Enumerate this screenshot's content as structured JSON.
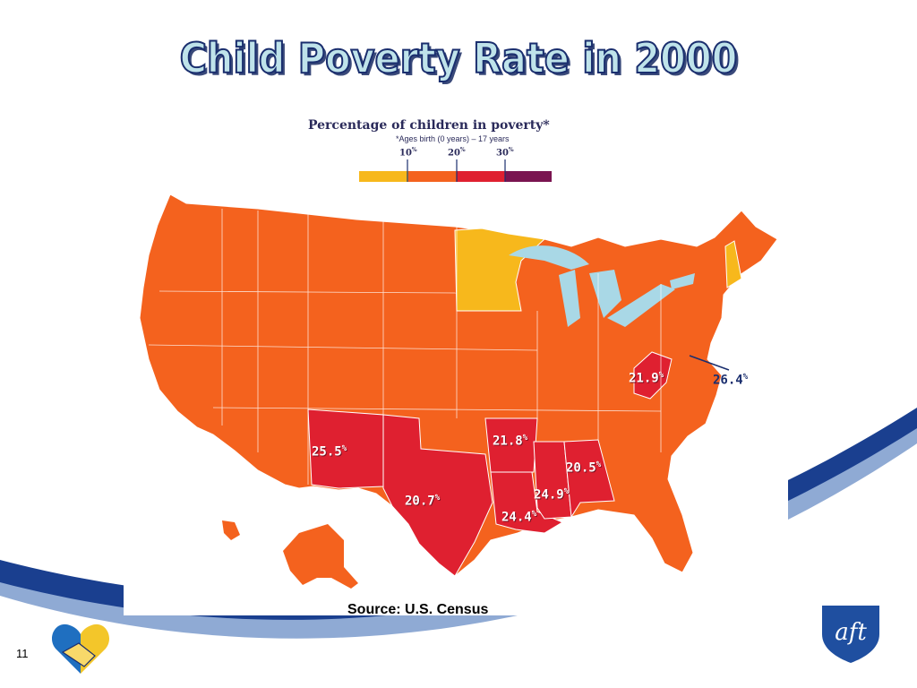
{
  "slide": {
    "title": "Child Poverty Rate in 2000",
    "source": "Source: U.S. Census",
    "page_number": "11"
  },
  "legend": {
    "title": "Percentage of children in poverty*",
    "subtitle": "*Ages birth (0 years) – 17 years",
    "ticks": [
      "10",
      "20",
      "30"
    ],
    "tick_unit": "%",
    "bins": [
      {
        "range": "<10%",
        "color": "#f7b81c"
      },
      {
        "range": "10–20%",
        "color": "#f4621e"
      },
      {
        "range": "20–30%",
        "color": "#df2030"
      },
      {
        "range": ">30%",
        "color": "#7a1450"
      }
    ]
  },
  "map": {
    "water_color": "#a9d8e6",
    "state_labels": [
      {
        "state": "New Mexico",
        "value": "25.5"
      },
      {
        "state": "Texas",
        "value": "20.7"
      },
      {
        "state": "Arkansas",
        "value": "21.8"
      },
      {
        "state": "Mississippi",
        "value": "24.9"
      },
      {
        "state": "Louisiana",
        "value": "24.4"
      },
      {
        "state": "Alabama",
        "value": "20.5"
      },
      {
        "state": "West Virginia",
        "value": "21.9"
      },
      {
        "state": "District of Columbia",
        "value": "26.4"
      }
    ],
    "unit": "%"
  },
  "colors": {
    "title_fill": "#bfe3ea",
    "title_outline": "#1a2e6e",
    "swoosh_dark": "#1a3f8f",
    "swoosh_light": "#8faad4",
    "aft_blue": "#1f4fa0"
  }
}
